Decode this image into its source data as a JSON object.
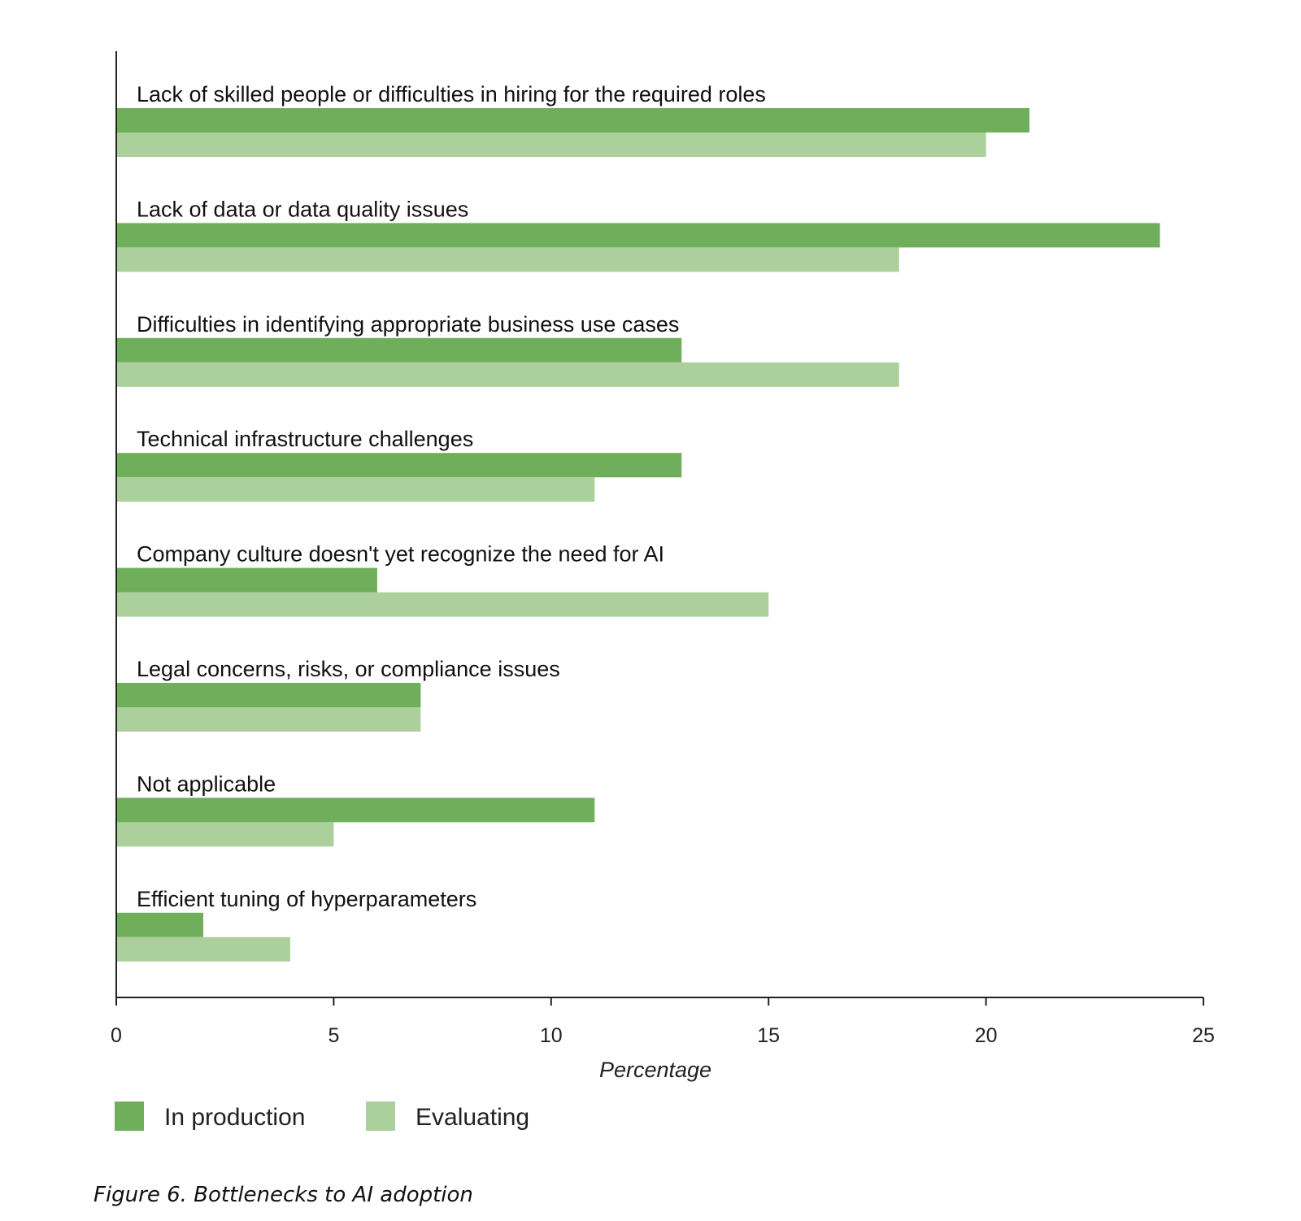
{
  "chart_data": {
    "type": "bar",
    "orientation": "horizontal",
    "categories": [
      "Lack of skilled people or difficulties in hiring for the required roles",
      "Lack of data or data quality issues",
      "Difficulties in identifying appropriate business use cases",
      "Technical infrastructure challenges",
      "Company culture doesn't yet recognize the need for AI",
      "Legal concerns, risks, or compliance issues",
      "Not applicable",
      "Efficient tuning of hyperparameters"
    ],
    "series": [
      {
        "name": "In production",
        "color": "#6fae5a",
        "values": [
          21,
          24,
          13,
          13,
          6,
          7,
          11,
          2
        ]
      },
      {
        "name": "Evaluating",
        "color": "#abd09b",
        "values": [
          20,
          18,
          18,
          11,
          15,
          7,
          5,
          4
        ]
      }
    ],
    "xlabel": "Percentage",
    "ylabel": "",
    "xlim": [
      0,
      25
    ],
    "xticks": [
      0,
      5,
      10,
      15,
      20,
      25
    ],
    "grid": false,
    "legend_position": "bottom-left",
    "caption": "Figure 6. Bottlenecks to AI adoption"
  }
}
